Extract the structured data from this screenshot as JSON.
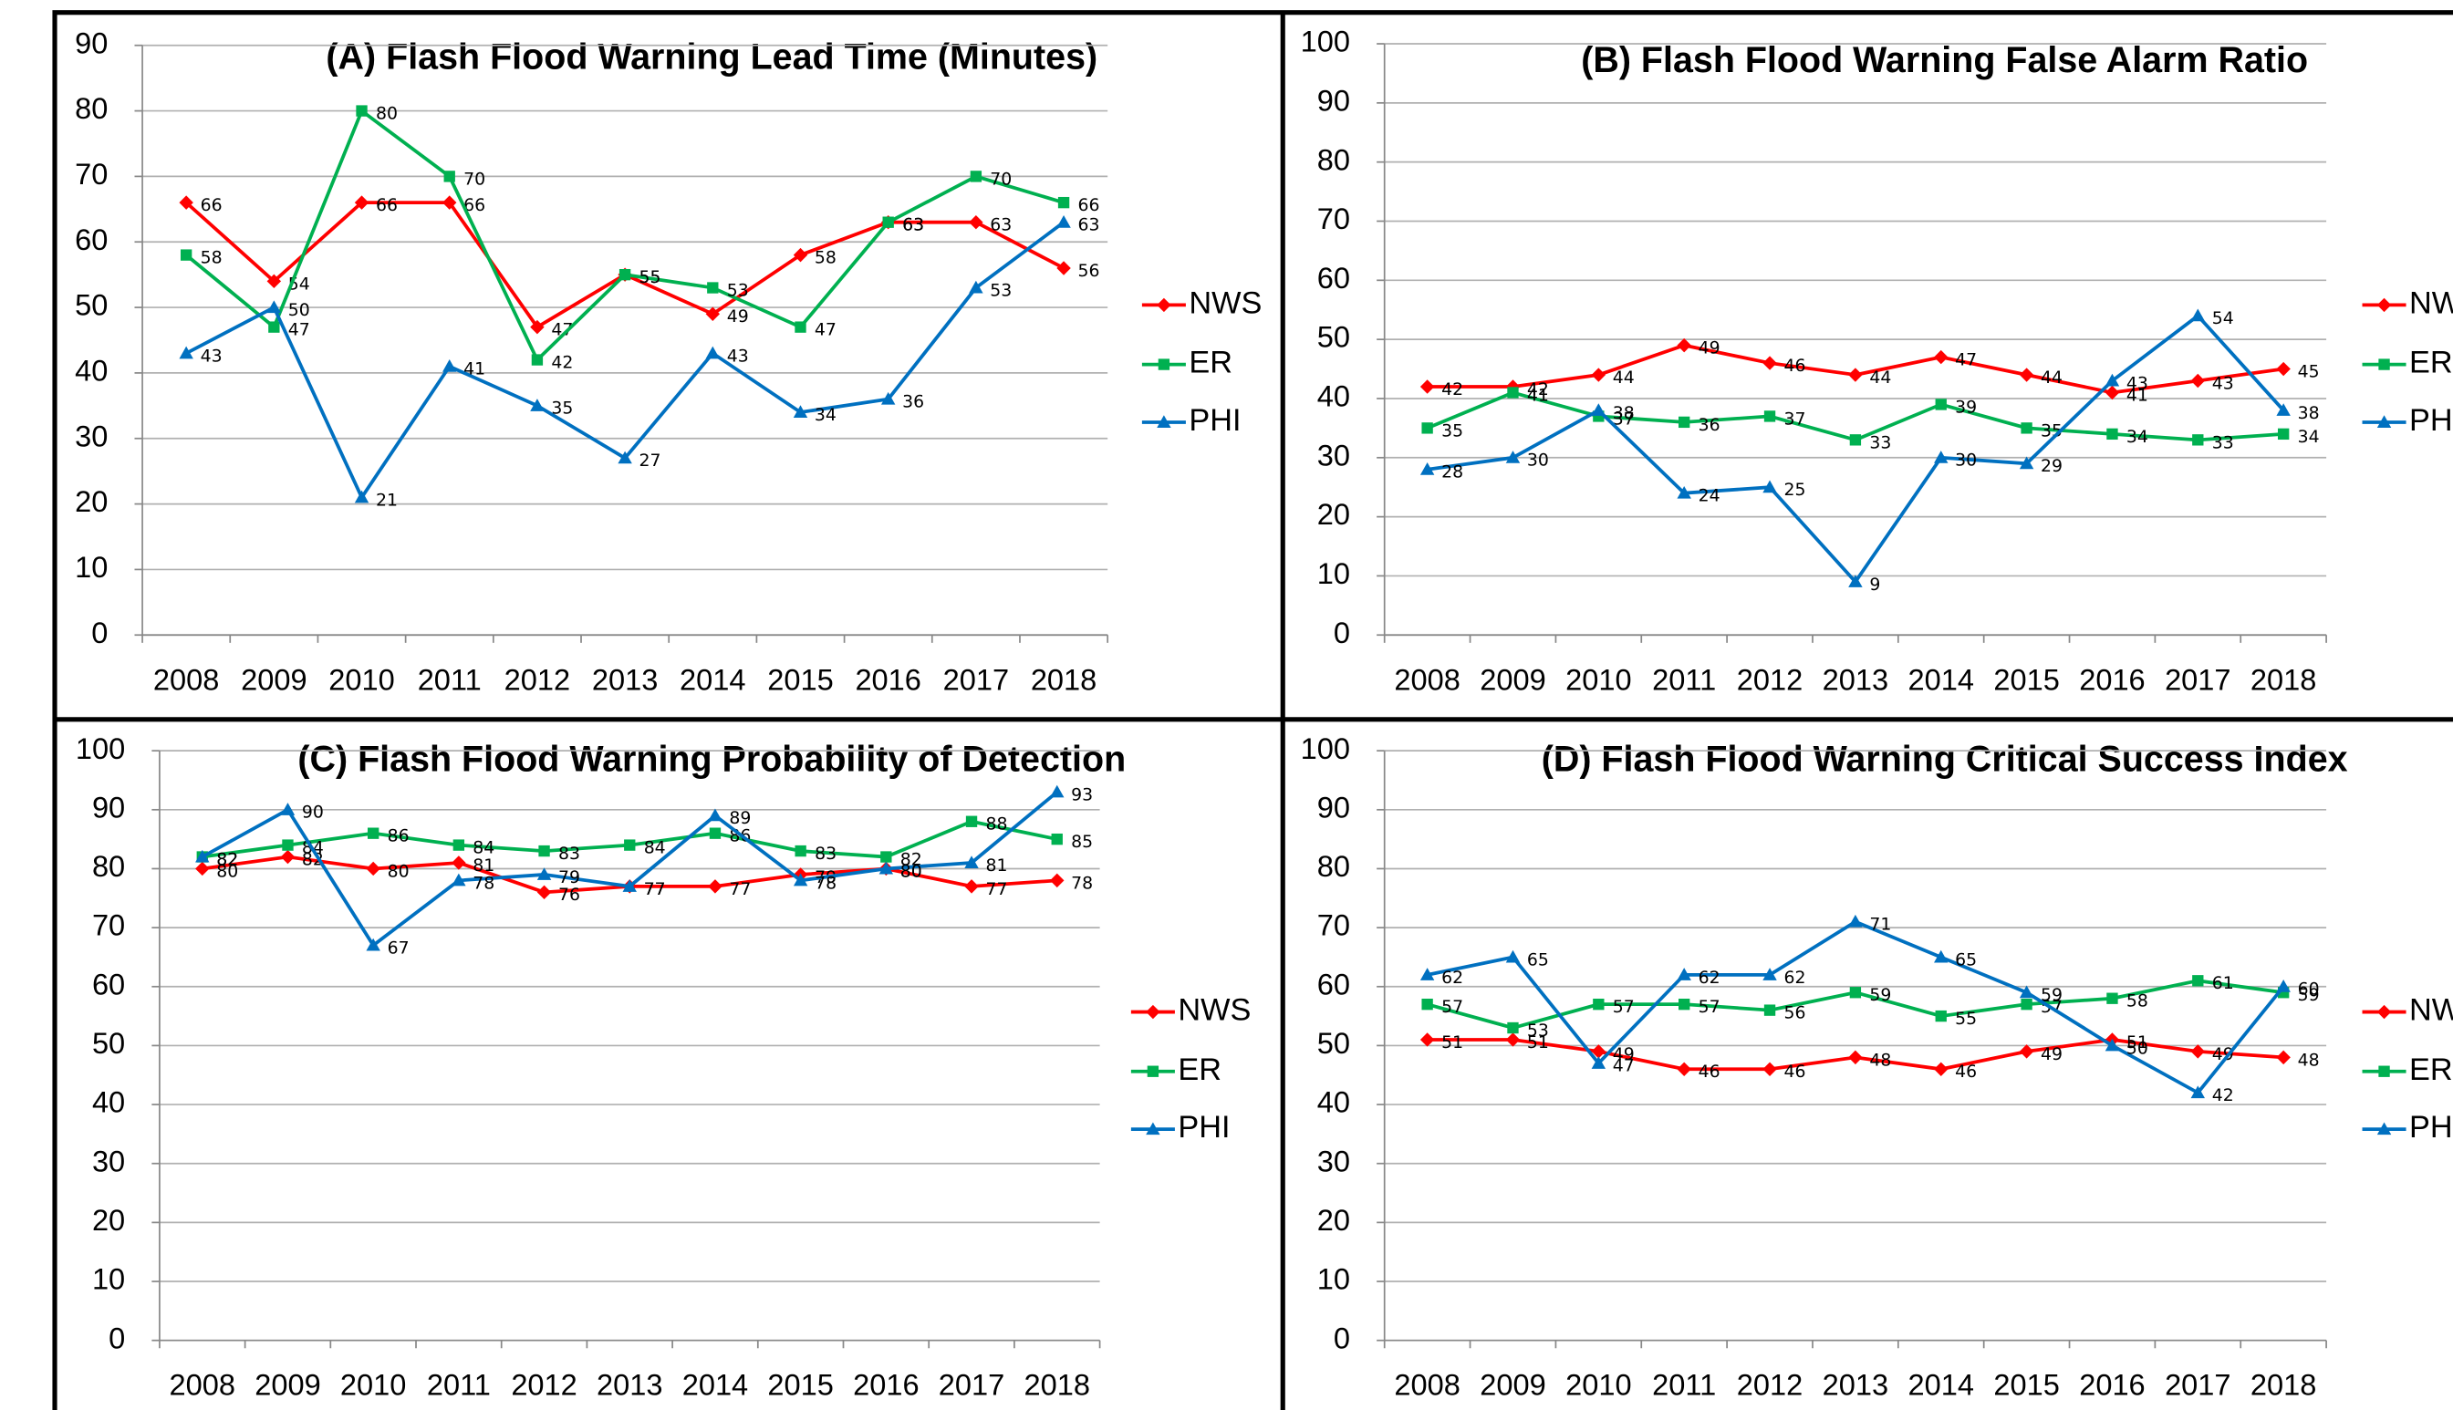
{
  "chart_data": [
    {
      "type": "line",
      "title": "(A) Flash Flood Warning Lead Time (Minutes)",
      "categories": [
        "2008",
        "2009",
        "2010",
        "2011",
        "2012",
        "2013",
        "2014",
        "2015",
        "2016",
        "2017",
        "2018"
      ],
      "ylim": [
        0,
        90
      ],
      "yticks": [
        0,
        10,
        20,
        30,
        40,
        50,
        60,
        70,
        80,
        90
      ],
      "grid": true,
      "legend": "right",
      "series": [
        {
          "name": "NWS",
          "color": "#ff0000",
          "marker": "diamond",
          "values": [
            66,
            54,
            66,
            66,
            47,
            55,
            49,
            58,
            63,
            63,
            56
          ]
        },
        {
          "name": "ER",
          "color": "#00b050",
          "marker": "square",
          "values": [
            58,
            47,
            80,
            70,
            42,
            55,
            53,
            47,
            63,
            70,
            66
          ]
        },
        {
          "name": "PHI",
          "color": "#0070c0",
          "marker": "triangle",
          "values": [
            43,
            50,
            21,
            41,
            35,
            27,
            43,
            34,
            36,
            53,
            63
          ]
        }
      ]
    },
    {
      "type": "line",
      "title": "(B) Flash Flood Warning False Alarm Ratio",
      "categories": [
        "2008",
        "2009",
        "2010",
        "2011",
        "2012",
        "2013",
        "2014",
        "2015",
        "2016",
        "2017",
        "2018"
      ],
      "ylim": [
        0,
        100
      ],
      "yticks": [
        0,
        10,
        20,
        30,
        40,
        50,
        60,
        70,
        80,
        90,
        100
      ],
      "grid": true,
      "legend": "right",
      "series": [
        {
          "name": "NWS",
          "color": "#ff0000",
          "marker": "diamond",
          "values": [
            42,
            42,
            44,
            49,
            46,
            44,
            47,
            44,
            41,
            43,
            45
          ]
        },
        {
          "name": "ER",
          "color": "#00b050",
          "marker": "square",
          "values": [
            35,
            41,
            37,
            36,
            37,
            33,
            39,
            35,
            34,
            33,
            34
          ]
        },
        {
          "name": "PHI",
          "color": "#0070c0",
          "marker": "triangle",
          "values": [
            28,
            30,
            38,
            24,
            25,
            9,
            30,
            29,
            43,
            54,
            38
          ]
        }
      ]
    },
    {
      "type": "line",
      "title": "(C) Flash Flood Warning Probability of Detection",
      "categories": [
        "2008",
        "2009",
        "2010",
        "2011",
        "2012",
        "2013",
        "2014",
        "2015",
        "2016",
        "2017",
        "2018"
      ],
      "ylim": [
        0,
        100
      ],
      "yticks": [
        0,
        10,
        20,
        30,
        40,
        50,
        60,
        70,
        80,
        90,
        100
      ],
      "grid": true,
      "legend": "right",
      "series": [
        {
          "name": "NWS",
          "color": "#ff0000",
          "marker": "diamond",
          "values": [
            80,
            82,
            80,
            81,
            76,
            77,
            77,
            79,
            80,
            77,
            78
          ]
        },
        {
          "name": "ER",
          "color": "#00b050",
          "marker": "square",
          "values": [
            82,
            84,
            86,
            84,
            83,
            84,
            86,
            83,
            82,
            88,
            85
          ]
        },
        {
          "name": "PHI",
          "color": "#0070c0",
          "marker": "triangle",
          "values": [
            82,
            90,
            67,
            78,
            79,
            77,
            89,
            78,
            80,
            81,
            93
          ]
        }
      ]
    },
    {
      "type": "line",
      "title": "(D) Flash Flood Warning Critical Success Index",
      "categories": [
        "2008",
        "2009",
        "2010",
        "2011",
        "2012",
        "2013",
        "2014",
        "2015",
        "2016",
        "2017",
        "2018"
      ],
      "ylim": [
        0,
        100
      ],
      "yticks": [
        0,
        10,
        20,
        30,
        40,
        50,
        60,
        70,
        80,
        90,
        100
      ],
      "grid": true,
      "legend": "right",
      "series": [
        {
          "name": "NWS",
          "color": "#ff0000",
          "marker": "diamond",
          "values": [
            51,
            51,
            49,
            46,
            46,
            48,
            46,
            49,
            51,
            49,
            48
          ]
        },
        {
          "name": "ER",
          "color": "#00b050",
          "marker": "square",
          "values": [
            57,
            53,
            57,
            57,
            56,
            59,
            55,
            57,
            58,
            61,
            59
          ]
        },
        {
          "name": "PHI",
          "color": "#0070c0",
          "marker": "triangle",
          "values": [
            62,
            65,
            47,
            62,
            62,
            71,
            65,
            59,
            50,
            42,
            60
          ]
        }
      ]
    }
  ]
}
